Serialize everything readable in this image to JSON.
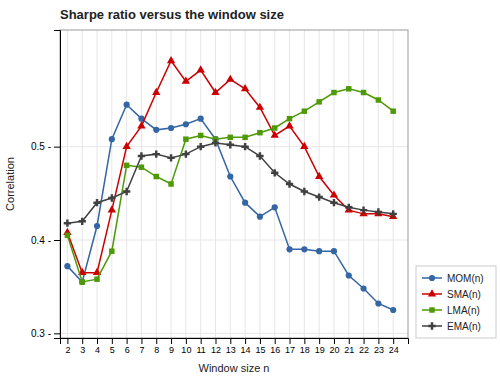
{
  "chart_data": {
    "type": "line",
    "title": "Sharpe ratio versus the window size",
    "xlabel": "Window size n",
    "ylabel": "Correlation",
    "x": [
      2,
      3,
      4,
      5,
      6,
      7,
      8,
      9,
      10,
      11,
      12,
      13,
      14,
      15,
      16,
      17,
      18,
      19,
      20,
      21,
      22,
      23,
      24
    ],
    "series": [
      {
        "name": "MOM(n)",
        "color": "#3465a4",
        "marker": "circle",
        "values": [
          0.372,
          0.355,
          0.415,
          0.508,
          0.545,
          0.53,
          0.518,
          0.52,
          0.524,
          0.53,
          0.508,
          0.468,
          0.44,
          0.425,
          0.435,
          0.39,
          0.39,
          0.388,
          0.388,
          0.362,
          0.348,
          0.332,
          0.325
        ]
      },
      {
        "name": "SMA(n)",
        "color": "#cc0000",
        "marker": "triangle",
        "values": [
          0.408,
          0.365,
          0.365,
          0.432,
          0.5,
          0.522,
          0.558,
          0.592,
          0.57,
          0.582,
          0.558,
          0.572,
          0.562,
          0.542,
          0.512,
          0.522,
          0.5,
          0.468,
          0.448,
          0.432,
          0.428,
          0.428,
          0.425
        ]
      },
      {
        "name": "LMA(n)",
        "color": "#4e9a06",
        "marker": "square",
        "values": [
          0.405,
          0.355,
          0.358,
          0.388,
          0.48,
          0.478,
          0.468,
          0.46,
          0.508,
          0.512,
          0.508,
          0.51,
          0.51,
          0.515,
          0.52,
          0.53,
          0.538,
          0.548,
          0.558,
          0.562,
          0.558,
          0.55,
          0.538
        ]
      },
      {
        "name": "EMA(n)",
        "color": "#404040",
        "marker": "cross",
        "values": [
          0.418,
          0.42,
          0.44,
          0.445,
          0.452,
          0.49,
          0.492,
          0.488,
          0.492,
          0.5,
          0.504,
          0.502,
          0.5,
          0.49,
          0.472,
          0.46,
          0.452,
          0.446,
          0.44,
          0.435,
          0.432,
          0.43,
          0.428
        ]
      }
    ],
    "xlim": [
      1.5,
      25.0
    ],
    "xticks": [
      2,
      3,
      4,
      5,
      6,
      7,
      8,
      9,
      10,
      11,
      12,
      13,
      14,
      15,
      16,
      17,
      18,
      19,
      20,
      21,
      22,
      23,
      24
    ],
    "ylim": [
      0.295,
      0.625
    ],
    "yticks": [
      {
        "value": 0.3,
        "label": "0.3 -"
      },
      {
        "value": 0.4,
        "label": "0.4 -"
      },
      {
        "value": 0.5,
        "label": "0.5 -"
      }
    ],
    "grid": true,
    "legend": "lower right"
  }
}
